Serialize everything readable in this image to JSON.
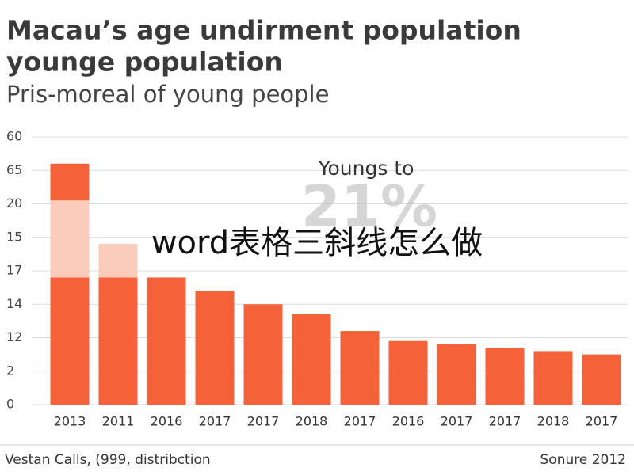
{
  "chart_data": {
    "type": "bar",
    "title": [
      "Macau’s age undirment population",
      "younge population"
    ],
    "subtitle": "Pris-moreal of young people",
    "annotation": "Youngs to",
    "annotation_value": "21%",
    "watermark": "word表格三斜线怎么做",
    "source": "Vestan Calls, (999, distribction",
    "credit": "Sonure 2012",
    "categories": [
      "2013",
      "2011",
      "2016",
      "2017",
      "2017",
      "2018",
      "2017",
      "2016",
      "2017",
      "2017",
      "2018",
      "2017"
    ],
    "series": [
      {
        "color": "#f4623a",
        "values": [
          38,
          38,
          38,
          34,
          30,
          27,
          22,
          19,
          18,
          17,
          16,
          15
        ]
      },
      {
        "color": "#fbcbbb",
        "values": [
          23,
          10,
          null,
          null,
          null,
          null,
          null,
          null,
          null,
          null,
          null,
          null
        ]
      },
      {
        "color": "#f4623a",
        "values": [
          11,
          null,
          null,
          null,
          null,
          null,
          null,
          null,
          null,
          null,
          null,
          null
        ]
      }
    ],
    "ylim": [
      0,
      80
    ],
    "yticks": [
      0,
      {
        "value": 10,
        "label": "2"
      },
      {
        "value": 20,
        "label": "12"
      },
      {
        "value": 30,
        "label": "14"
      },
      {
        "value": 40,
        "label": "17"
      },
      {
        "value": 50,
        "label": "15"
      },
      {
        "value": 60,
        "label": "20"
      },
      {
        "value": 70,
        "label": "65"
      },
      {
        "value": 80,
        "label": "60"
      }
    ],
    "grid": true
  }
}
